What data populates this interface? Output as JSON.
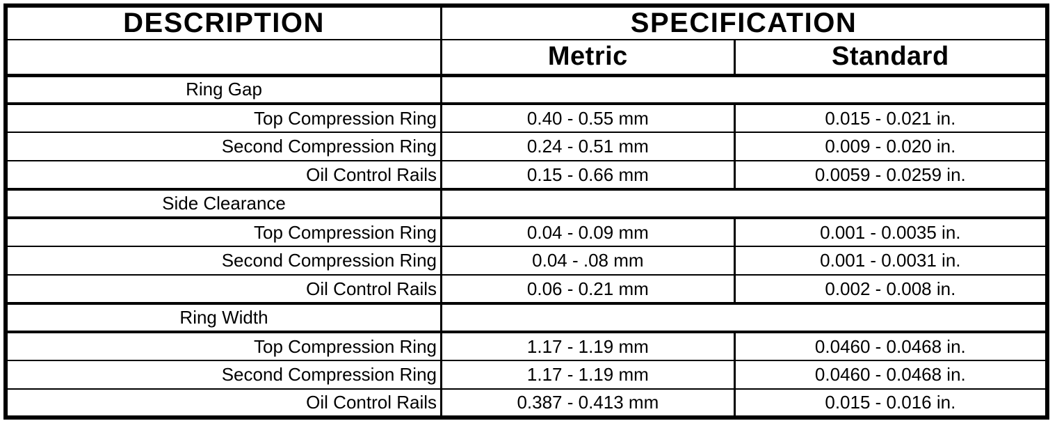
{
  "table": {
    "headers": {
      "description": "DESCRIPTION",
      "specification": "SPECIFICATION",
      "metric": "Metric",
      "standard": "Standard"
    },
    "sections": [
      {
        "name": "Ring Gap",
        "rows": [
          {
            "label": "Top Compression Ring",
            "metric": "0.40 - 0.55 mm",
            "standard": "0.015 - 0.021 in."
          },
          {
            "label": "Second Compression Ring",
            "metric": "0.24 - 0.51 mm",
            "standard": "0.009 - 0.020 in."
          },
          {
            "label": "Oil Control Rails",
            "metric": "0.15 - 0.66 mm",
            "standard": "0.0059 - 0.0259 in."
          }
        ]
      },
      {
        "name": "Side Clearance",
        "rows": [
          {
            "label": "Top Compression Ring",
            "metric": "0.04 - 0.09 mm",
            "standard": "0.001 - 0.0035 in."
          },
          {
            "label": "Second Compression Ring",
            "metric": "0.04 - .08 mm",
            "standard": "0.001 - 0.0031 in."
          },
          {
            "label": "Oil Control Rails",
            "metric": "0.06 - 0.21 mm",
            "standard": "0.002 - 0.008 in."
          }
        ]
      },
      {
        "name": "Ring Width",
        "rows": [
          {
            "label": "Top Compression Ring",
            "metric": "1.17 - 1.19 mm",
            "standard": "0.0460 - 0.0468 in."
          },
          {
            "label": "Second Compression Ring",
            "metric": "1.17 - 1.19 mm",
            "standard": "0.0460 - 0.0468 in."
          },
          {
            "label": "Oil Control Rails",
            "metric": "0.387 - 0.413 mm",
            "standard": "0.015 - 0.016 in."
          }
        ]
      }
    ]
  }
}
